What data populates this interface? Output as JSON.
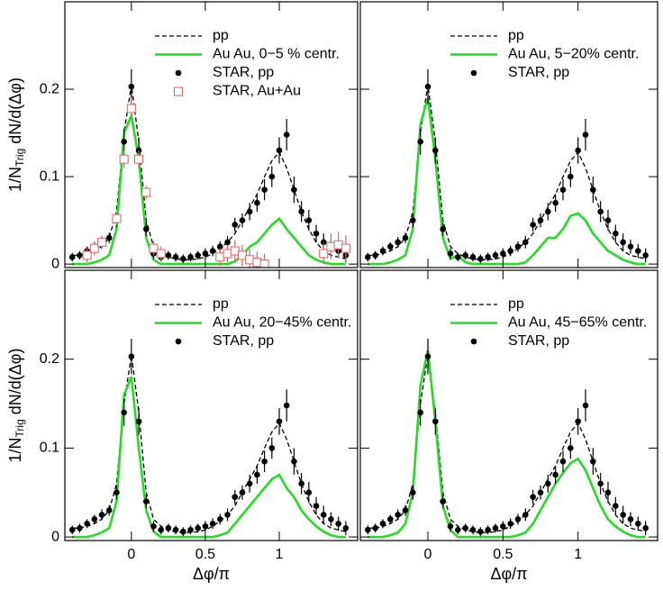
{
  "chart_data": [
    {
      "type": "line",
      "ylabel": "1/N",
      "ylabel_sub": "Trig",
      "ylabel_rest": "dN/d(Δφ)",
      "xlim": [
        -0.45,
        1.53
      ],
      "ylim": [
        -0.004,
        0.3
      ],
      "xticks": [
        0,
        0.5,
        1
      ],
      "yticks": [
        0,
        0.1,
        0.2
      ],
      "x": [
        -0.4,
        -0.35,
        -0.3,
        -0.25,
        -0.2,
        -0.15,
        -0.1,
        -0.05,
        0,
        0.05,
        0.1,
        0.15,
        0.2,
        0.25,
        0.3,
        0.35,
        0.4,
        0.45,
        0.5,
        0.55,
        0.6,
        0.65,
        0.7,
        0.75,
        0.8,
        0.85,
        0.9,
        0.95,
        1,
        1.05,
        1.1,
        1.15,
        1.2,
        1.25,
        1.3,
        1.35,
        1.4,
        1.45
      ],
      "series": [
        {
          "name": "pp",
          "color": "#000000",
          "style": "dashed",
          "values": [
            0.01,
            0.01,
            0.012,
            0.015,
            0.02,
            0.03,
            0.06,
            0.15,
            0.205,
            0.14,
            0.05,
            0.02,
            0.012,
            0.008,
            0.006,
            0.005,
            0.005,
            0.006,
            0.008,
            0.012,
            0.018,
            0.025,
            0.035,
            0.05,
            0.065,
            0.08,
            0.1,
            0.118,
            0.128,
            0.11,
            0.085,
            0.06,
            0.04,
            0.025,
            0.015,
            0.01,
            0.008,
            0.006
          ]
        },
        {
          "name": "Au Au, 0−5 % centr.",
          "color": "#22dd22",
          "style": "line",
          "values": [
            0,
            0,
            0,
            0.002,
            0.005,
            0.01,
            0.04,
            0.15,
            0.17,
            0.12,
            0.03,
            0.005,
            0,
            0,
            0,
            0,
            0,
            0,
            0,
            0,
            0,
            0,
            0.003,
            0.01,
            0.02,
            0.025,
            0.035,
            0.045,
            0.052,
            0.04,
            0.03,
            0.02,
            0.01,
            0.005,
            0.002,
            0,
            0,
            0
          ]
        },
        {
          "name": "STAR, pp",
          "color": "#000000",
          "style": "dot",
          "values": [
            0.008,
            0.01,
            0.015,
            0.02,
            0.025,
            0.03,
            0.05,
            0.14,
            0.203,
            0.13,
            0.04,
            0.012,
            0.008,
            0.01,
            0.008,
            0.006,
            0.008,
            0.01,
            0.012,
            0.015,
            0.02,
            0.025,
            0.045,
            0.05,
            0.06,
            0.07,
            0.085,
            0.1,
            0.13,
            0.148,
            0.085,
            0.06,
            0.05,
            0.035,
            0.025,
            0.02,
            0.015,
            0.01
          ],
          "errors": [
            0.005,
            0.005,
            0.005,
            0.005,
            0.006,
            0.006,
            0.008,
            0.015,
            0.02,
            0.015,
            0.008,
            0.006,
            0.005,
            0.005,
            0.005,
            0.005,
            0.005,
            0.005,
            0.006,
            0.006,
            0.006,
            0.007,
            0.008,
            0.008,
            0.01,
            0.01,
            0.012,
            0.012,
            0.015,
            0.018,
            0.015,
            0.012,
            0.012,
            0.01,
            0.01,
            0.008,
            0.008,
            0.008
          ]
        },
        {
          "name": "STAR, Au+Au",
          "color": "#e06060",
          "style": "square",
          "x": [
            -0.3,
            -0.25,
            -0.2,
            -0.1,
            -0.05,
            0,
            0.05,
            0.1,
            0.15,
            0.2,
            0.6,
            0.65,
            0.7,
            0.75,
            0.8,
            0.85,
            0.9,
            1.3,
            1.35,
            1.4,
            1.45
          ],
          "values": [
            0.01,
            0.018,
            0.025,
            0.052,
            0.12,
            0.178,
            0.12,
            0.082,
            0.018,
            0.012,
            0.008,
            0.012,
            0.015,
            0.01,
            0.005,
            0.002,
            0,
            0.012,
            0.02,
            0.022,
            0.018
          ],
          "errors": [
            0.008,
            0.008,
            0.008,
            0.008,
            0.01,
            0.012,
            0.01,
            0.008,
            0.008,
            0.008,
            0.01,
            0.01,
            0.012,
            0.012,
            0.012,
            0.012,
            0.012,
            0.012,
            0.015,
            0.015,
            0.015
          ]
        }
      ]
    },
    {
      "type": "line",
      "xlim": [
        -0.45,
        1.53
      ],
      "ylim": [
        -0.004,
        0.3
      ],
      "xticks": [
        0,
        0.5,
        1
      ],
      "yticks": [
        0,
        0.1,
        0.2
      ],
      "x": [
        -0.4,
        -0.35,
        -0.3,
        -0.25,
        -0.2,
        -0.15,
        -0.1,
        -0.05,
        0,
        0.05,
        0.1,
        0.15,
        0.2,
        0.25,
        0.3,
        0.35,
        0.4,
        0.45,
        0.5,
        0.55,
        0.6,
        0.65,
        0.7,
        0.75,
        0.8,
        0.85,
        0.9,
        0.95,
        1,
        1.05,
        1.1,
        1.15,
        1.2,
        1.25,
        1.3,
        1.35,
        1.4,
        1.45
      ],
      "series": [
        {
          "name": "pp",
          "color": "#000000",
          "style": "dashed",
          "values": [
            0.01,
            0.01,
            0.012,
            0.015,
            0.02,
            0.03,
            0.06,
            0.15,
            0.205,
            0.14,
            0.05,
            0.02,
            0.012,
            0.008,
            0.006,
            0.005,
            0.005,
            0.006,
            0.008,
            0.012,
            0.018,
            0.025,
            0.035,
            0.05,
            0.065,
            0.08,
            0.1,
            0.118,
            0.128,
            0.11,
            0.085,
            0.06,
            0.04,
            0.025,
            0.015,
            0.01,
            0.008,
            0.006
          ]
        },
        {
          "name": "Au Au, 5−20% centr.",
          "color": "#22dd22",
          "style": "line",
          "values": [
            0,
            0,
            0,
            0.002,
            0.005,
            0.01,
            0.04,
            0.16,
            0.19,
            0.12,
            0.03,
            0.006,
            0.01,
            0.002,
            0,
            0,
            0,
            0,
            0,
            0,
            0,
            0.002,
            0.01,
            0.02,
            0.03,
            0.03,
            0.04,
            0.055,
            0.058,
            0.05,
            0.035,
            0.025,
            0.015,
            0.01,
            0.005,
            0.002,
            0,
            0
          ]
        },
        {
          "name": "STAR, pp",
          "color": "#000000",
          "style": "dot",
          "values": [
            0.008,
            0.01,
            0.015,
            0.02,
            0.025,
            0.03,
            0.05,
            0.14,
            0.203,
            0.13,
            0.04,
            0.012,
            0.008,
            0.01,
            0.008,
            0.006,
            0.008,
            0.01,
            0.012,
            0.015,
            0.02,
            0.025,
            0.045,
            0.05,
            0.06,
            0.07,
            0.085,
            0.1,
            0.13,
            0.148,
            0.085,
            0.06,
            0.05,
            0.035,
            0.025,
            0.02,
            0.015,
            0.01
          ],
          "errors": [
            0.005,
            0.005,
            0.005,
            0.005,
            0.006,
            0.006,
            0.008,
            0.015,
            0.02,
            0.015,
            0.008,
            0.006,
            0.005,
            0.005,
            0.005,
            0.005,
            0.005,
            0.005,
            0.006,
            0.006,
            0.006,
            0.007,
            0.008,
            0.008,
            0.01,
            0.01,
            0.012,
            0.012,
            0.015,
            0.018,
            0.015,
            0.012,
            0.012,
            0.01,
            0.01,
            0.008,
            0.008,
            0.008
          ]
        }
      ]
    },
    {
      "type": "line",
      "ylabel": "1/N",
      "ylabel_sub": "Trig",
      "ylabel_rest": "dN/d(Δφ)",
      "xlabel": "Δφ/π",
      "xlim": [
        -0.45,
        1.53
      ],
      "ylim": [
        -0.004,
        0.3
      ],
      "xticks": [
        0,
        0.5,
        1
      ],
      "yticks": [
        0,
        0.1,
        0.2
      ],
      "x": [
        -0.4,
        -0.35,
        -0.3,
        -0.25,
        -0.2,
        -0.15,
        -0.1,
        -0.05,
        0,
        0.05,
        0.1,
        0.15,
        0.2,
        0.25,
        0.3,
        0.35,
        0.4,
        0.45,
        0.5,
        0.55,
        0.6,
        0.65,
        0.7,
        0.75,
        0.8,
        0.85,
        0.9,
        0.95,
        1,
        1.05,
        1.1,
        1.15,
        1.2,
        1.25,
        1.3,
        1.35,
        1.4,
        1.45
      ],
      "series": [
        {
          "name": "pp",
          "color": "#000000",
          "style": "dashed",
          "values": [
            0.01,
            0.01,
            0.012,
            0.015,
            0.02,
            0.03,
            0.06,
            0.15,
            0.205,
            0.14,
            0.05,
            0.02,
            0.012,
            0.008,
            0.006,
            0.005,
            0.005,
            0.006,
            0.008,
            0.012,
            0.018,
            0.025,
            0.035,
            0.05,
            0.065,
            0.08,
            0.1,
            0.118,
            0.128,
            0.11,
            0.085,
            0.06,
            0.04,
            0.025,
            0.015,
            0.01,
            0.008,
            0.006
          ]
        },
        {
          "name": "Au Au, 20−45% centr.",
          "color": "#22dd22",
          "style": "line",
          "values": [
            0,
            0,
            0,
            0.002,
            0.005,
            0.01,
            0.04,
            0.16,
            0.18,
            0.1,
            0.03,
            0.006,
            0,
            0,
            0,
            0,
            0,
            0,
            0,
            0,
            0.002,
            0.005,
            0.015,
            0.025,
            0.035,
            0.045,
            0.055,
            0.065,
            0.07,
            0.055,
            0.045,
            0.03,
            0.02,
            0.012,
            0.006,
            0.002,
            0,
            0
          ]
        },
        {
          "name": "STAR, pp",
          "color": "#000000",
          "style": "dot",
          "values": [
            0.008,
            0.01,
            0.015,
            0.02,
            0.025,
            0.03,
            0.05,
            0.14,
            0.203,
            0.13,
            0.04,
            0.012,
            0.008,
            0.01,
            0.008,
            0.006,
            0.008,
            0.01,
            0.012,
            0.015,
            0.02,
            0.025,
            0.045,
            0.05,
            0.06,
            0.07,
            0.085,
            0.1,
            0.13,
            0.148,
            0.085,
            0.06,
            0.05,
            0.035,
            0.025,
            0.02,
            0.015,
            0.01
          ],
          "errors": [
            0.005,
            0.005,
            0.005,
            0.005,
            0.006,
            0.006,
            0.008,
            0.015,
            0.02,
            0.015,
            0.008,
            0.006,
            0.005,
            0.005,
            0.005,
            0.005,
            0.005,
            0.005,
            0.006,
            0.006,
            0.006,
            0.007,
            0.008,
            0.008,
            0.01,
            0.01,
            0.012,
            0.012,
            0.015,
            0.018,
            0.015,
            0.012,
            0.012,
            0.01,
            0.01,
            0.008,
            0.008,
            0.008
          ]
        }
      ]
    },
    {
      "type": "line",
      "xlabel": "Δφ/π",
      "xlim": [
        -0.45,
        1.53
      ],
      "ylim": [
        -0.004,
        0.3
      ],
      "xticks": [
        0,
        0.5,
        1
      ],
      "yticks": [
        0,
        0.1,
        0.2
      ],
      "x": [
        -0.4,
        -0.35,
        -0.3,
        -0.25,
        -0.2,
        -0.15,
        -0.1,
        -0.05,
        0,
        0.05,
        0.1,
        0.15,
        0.2,
        0.25,
        0.3,
        0.35,
        0.4,
        0.45,
        0.5,
        0.55,
        0.6,
        0.65,
        0.7,
        0.75,
        0.8,
        0.85,
        0.9,
        0.95,
        1,
        1.05,
        1.1,
        1.15,
        1.2,
        1.25,
        1.3,
        1.35,
        1.4,
        1.45
      ],
      "series": [
        {
          "name": "pp",
          "color": "#000000",
          "style": "dashed",
          "values": [
            0.01,
            0.01,
            0.012,
            0.015,
            0.02,
            0.03,
            0.06,
            0.15,
            0.205,
            0.14,
            0.05,
            0.02,
            0.012,
            0.008,
            0.006,
            0.005,
            0.005,
            0.006,
            0.008,
            0.012,
            0.018,
            0.025,
            0.035,
            0.05,
            0.065,
            0.08,
            0.1,
            0.118,
            0.128,
            0.11,
            0.085,
            0.06,
            0.04,
            0.025,
            0.015,
            0.01,
            0.008,
            0.006
          ]
        },
        {
          "name": "Au Au, 45−65% centr.",
          "color": "#22dd22",
          "style": "line",
          "values": [
            0,
            0,
            0,
            0.002,
            0.005,
            0.015,
            0.05,
            0.17,
            0.21,
            0.13,
            0.035,
            0.008,
            0,
            0,
            0,
            0,
            0,
            0,
            0,
            0,
            0.002,
            0.005,
            0.015,
            0.03,
            0.045,
            0.06,
            0.072,
            0.083,
            0.088,
            0.075,
            0.055,
            0.035,
            0.02,
            0.012,
            0.006,
            0.002,
            0,
            0
          ]
        },
        {
          "name": "STAR, pp",
          "color": "#000000",
          "style": "dot",
          "values": [
            0.008,
            0.01,
            0.015,
            0.02,
            0.025,
            0.03,
            0.05,
            0.14,
            0.203,
            0.13,
            0.04,
            0.012,
            0.008,
            0.01,
            0.008,
            0.006,
            0.008,
            0.01,
            0.012,
            0.015,
            0.02,
            0.025,
            0.045,
            0.05,
            0.06,
            0.07,
            0.085,
            0.1,
            0.13,
            0.148,
            0.085,
            0.06,
            0.05,
            0.035,
            0.025,
            0.02,
            0.015,
            0.01
          ],
          "errors": [
            0.005,
            0.005,
            0.005,
            0.005,
            0.006,
            0.006,
            0.008,
            0.015,
            0.02,
            0.015,
            0.008,
            0.006,
            0.005,
            0.005,
            0.005,
            0.005,
            0.005,
            0.005,
            0.006,
            0.006,
            0.006,
            0.007,
            0.008,
            0.008,
            0.01,
            0.01,
            0.012,
            0.012,
            0.015,
            0.018,
            0.015,
            0.012,
            0.012,
            0.01,
            0.01,
            0.008,
            0.008,
            0.008
          ]
        }
      ]
    }
  ]
}
